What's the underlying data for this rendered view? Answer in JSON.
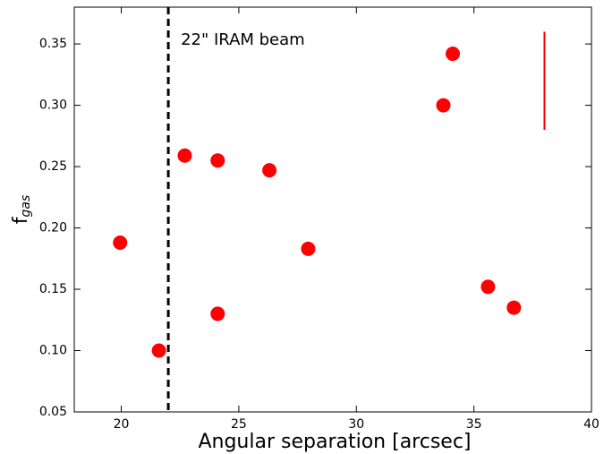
{
  "chart_data": {
    "type": "scatter",
    "xlabel": "Angular separation [arcsec]",
    "ylabel": {
      "main": "f",
      "sub": "gas"
    },
    "x": [
      19.95,
      21.6,
      22.7,
      24.1,
      24.1,
      26.3,
      27.95,
      33.7,
      34.1,
      35.6,
      36.7
    ],
    "values": [
      0.188,
      0.1,
      0.259,
      0.255,
      0.13,
      0.247,
      0.183,
      0.3,
      0.342,
      0.152,
      0.135
    ],
    "color": "#ff0000",
    "xlim": [
      18,
      40
    ],
    "ylim": [
      0.05,
      0.38
    ],
    "xticks": [
      20,
      25,
      30,
      35,
      40
    ],
    "yticks": [
      {
        "value": 0.05,
        "label": "0.05"
      },
      {
        "value": 0.1,
        "label": "0.10"
      },
      {
        "value": 0.15,
        "label": "0.15"
      },
      {
        "value": 0.2,
        "label": "0.20"
      },
      {
        "value": 0.25,
        "label": "0.25"
      },
      {
        "value": 0.3,
        "label": "0.30"
      },
      {
        "value": 0.35,
        "label": "0.35"
      }
    ],
    "vline": {
      "x": 22,
      "label": "22\" IRAM beam"
    },
    "error_bar": {
      "x": 38,
      "low": 0.28,
      "high": 0.36,
      "color": "#ff0000"
    }
  }
}
